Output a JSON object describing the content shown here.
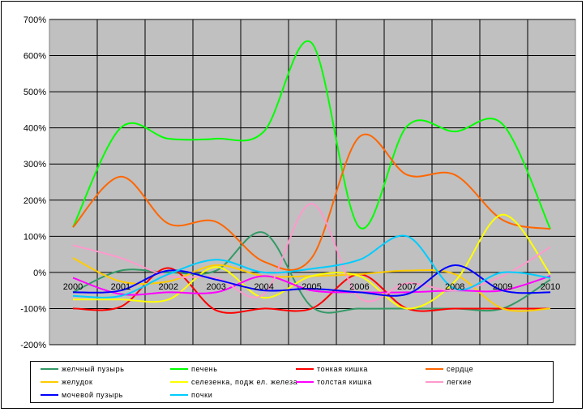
{
  "chart_data": {
    "type": "line",
    "x": [
      "2000",
      "2001",
      "2002",
      "2003",
      "2004",
      "2005",
      "2006",
      "2007",
      "2008",
      "2009",
      "2010"
    ],
    "y_ticks": [
      "700%",
      "600%",
      "500%",
      "400%",
      "300%",
      "200%",
      "100%",
      "0%",
      "-100%",
      "-200%"
    ],
    "ylim": [
      -200,
      700
    ],
    "grid": true,
    "legend_position": "bottom",
    "plot_background": "#c0c0c0",
    "series": [
      {
        "name": "желчный пузырь",
        "color": "#339966",
        "values": [
          -55,
          5,
          0,
          5,
          110,
          -95,
          -100,
          -100,
          -100,
          -100,
          -20
        ]
      },
      {
        "name": "печень",
        "color": "#00ff00",
        "values": [
          125,
          400,
          370,
          370,
          390,
          635,
          125,
          405,
          390,
          410,
          120
        ]
      },
      {
        "name": "тонкая кишка",
        "color": "#ff0000",
        "values": [
          -100,
          -95,
          12,
          -105,
          -100,
          -100,
          -5,
          -100,
          -100,
          -100,
          -100
        ]
      },
      {
        "name": "сердце",
        "color": "#ff6600",
        "values": [
          125,
          265,
          135,
          140,
          30,
          40,
          375,
          270,
          270,
          145,
          120
        ]
      },
      {
        "name": "желудок",
        "color": "#ffcc00",
        "values": [
          40,
          -25,
          -25,
          20,
          -10,
          -10,
          -5,
          5,
          -5,
          -100,
          -100
        ]
      },
      {
        "name": "селезенка, подж ел. железа",
        "color": "#ffff00",
        "values": [
          -75,
          -75,
          -75,
          15,
          -70,
          -10,
          -10,
          -100,
          -25,
          160,
          -5
        ]
      },
      {
        "name": "толстая кишка",
        "color": "#ff00ff",
        "values": [
          -15,
          -60,
          -55,
          -55,
          -10,
          -50,
          -55,
          -55,
          -50,
          -50,
          -10
        ]
      },
      {
        "name": "легкие",
        "color": "#ff99cc",
        "values": [
          75,
          40,
          -10,
          -15,
          -60,
          190,
          -70,
          -30,
          -50,
          -10,
          70
        ]
      },
      {
        "name": "мочевой пузырь",
        "color": "#0000ff",
        "values": [
          -55,
          -50,
          5,
          -20,
          -50,
          -45,
          -55,
          -60,
          20,
          -50,
          -55
        ]
      },
      {
        "name": "почки",
        "color": "#00ccff",
        "values": [
          -65,
          -65,
          -5,
          35,
          0,
          10,
          35,
          100,
          -45,
          0,
          -15
        ]
      }
    ]
  }
}
